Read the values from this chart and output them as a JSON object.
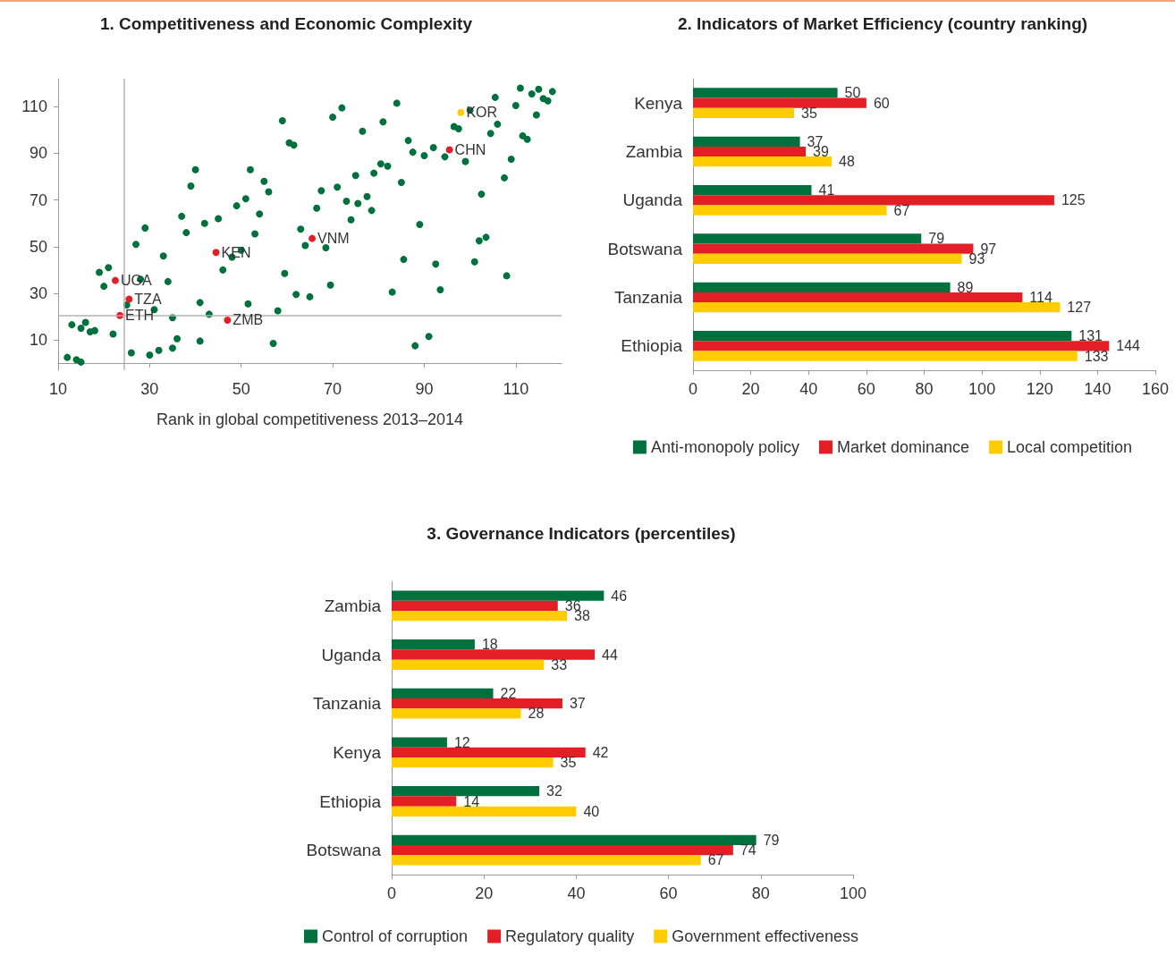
{
  "chart_data": [
    {
      "type": "scatter",
      "title": "1. Competitiveness and Economic Complexity",
      "xlabel": "Rank in global competitiveness 2013–2014",
      "xlim": [
        10,
        120
      ],
      "ylim": [
        -3,
        122
      ],
      "xticks": [
        10,
        30,
        50,
        70,
        90,
        110
      ],
      "yticks": [
        10,
        30,
        50,
        70,
        90,
        110
      ],
      "grid": false,
      "marker": "circle",
      "series": [
        {
          "color": "#00703c",
          "x": [
            40,
            39,
            37,
            45,
            42,
            38,
            29,
            27,
            33,
            46,
            21,
            19,
            20,
            28,
            34,
            25,
            31,
            41,
            43,
            35,
            13,
            15,
            16,
            17,
            18,
            22,
            36,
            41,
            26,
            30,
            32,
            35,
            12,
            14,
            15,
            59,
            60.5,
            61.5,
            52,
            55,
            56,
            51,
            49,
            54,
            53,
            48,
            50,
            59.5,
            62,
            65,
            69.5,
            58,
            51.5,
            57,
            63,
            64,
            68.5,
            67.5,
            66.5,
            71,
            75,
            73,
            75.5,
            77.5,
            78.5,
            74,
            70,
            72,
            76.5,
            79,
            84,
            81,
            86.5,
            87.5,
            90,
            92,
            94.5,
            100,
            96.5,
            97.5,
            99,
            104.5,
            106,
            105.5,
            111,
            113.5,
            115,
            118,
            116,
            117,
            110,
            114.5,
            111.5,
            112.5,
            109,
            107.5,
            102.5,
            80.5,
            82,
            85,
            89,
            102,
            103.5,
            85.5,
            92.5,
            101,
            108,
            83,
            93.5,
            88,
            91
          ],
          "values": [
            83,
            76,
            63,
            62,
            60,
            56,
            58,
            51,
            46,
            40,
            41,
            39,
            33,
            36,
            35,
            25,
            23,
            26,
            21,
            19.5,
            16.5,
            15,
            17.5,
            13.5,
            14,
            12.5,
            10.5,
            9.5,
            4.5,
            3.5,
            5.5,
            6.5,
            2.5,
            1.5,
            0.5,
            104,
            94.5,
            93.5,
            83,
            78,
            73.5,
            70.5,
            67.5,
            64,
            55.5,
            45.5,
            48.5,
            38.5,
            29.5,
            28.5,
            33.5,
            22.5,
            25.5,
            8.5,
            57.5,
            50.5,
            49.5,
            74,
            66.5,
            75.5,
            80.5,
            69.5,
            68.5,
            71.5,
            65.5,
            61.5,
            105.5,
            109.5,
            99.5,
            81.5,
            111.5,
            103.5,
            95.5,
            90.5,
            89,
            92.5,
            88.5,
            108.5,
            101.5,
            100.5,
            86.5,
            98.5,
            102.5,
            114,
            118,
            115.5,
            117.5,
            116.5,
            113.5,
            112.5,
            110.5,
            106.5,
            97.5,
            96,
            87.5,
            79.5,
            72.5,
            85.5,
            84.5,
            77.5,
            59.5,
            52.5,
            54,
            44.5,
            42.5,
            43.5,
            37.5,
            30.5,
            31.5,
            7.5,
            11.5
          ]
        },
        {
          "color": "#e31e24",
          "x": [
            22.5,
            25.5,
            23.5,
            44.5,
            47,
            65.5,
            95.5
          ],
          "values": [
            35.5,
            27.5,
            20.5,
            47.5,
            18.5,
            53.5,
            91.5
          ]
        },
        {
          "color": "#ffcc00",
          "x": [
            98
          ],
          "values": [
            107.5
          ]
        }
      ],
      "ref_lines": [
        {
          "axis": "x",
          "value": 24.5,
          "color": "#b3b3b3"
        },
        {
          "axis": "y",
          "value": 20.5,
          "color": "#b3b3b3"
        }
      ],
      "annotations": [
        {
          "text": "UGA",
          "x": 22.5,
          "y": 35.5
        },
        {
          "text": "TZA",
          "x": 25.5,
          "y": 27.5
        },
        {
          "text": "ETH",
          "x": 23.5,
          "y": 20.5
        },
        {
          "text": "KEN",
          "x": 44.5,
          "y": 47.5
        },
        {
          "text": "ZMB",
          "x": 47,
          "y": 18.5
        },
        {
          "text": "VNM",
          "x": 65.5,
          "y": 53.5
        },
        {
          "text": "CHN",
          "x": 95.5,
          "y": 91.5
        },
        {
          "text": "KOR",
          "x": 98,
          "y": 107.5
        }
      ]
    },
    {
      "type": "bar",
      "orientation": "horizontal",
      "title": "2. Indicators of Market Efficiency (country ranking)",
      "categories": [
        "Kenya",
        "Zambia",
        "Uganda",
        "Botswana",
        "Tanzania",
        "Ethiopia"
      ],
      "xlim": [
        0,
        160
      ],
      "xticks": [
        0,
        20,
        40,
        60,
        80,
        100,
        120,
        140,
        160
      ],
      "grid": false,
      "legend": "bottom",
      "data_labels": true,
      "series": [
        {
          "name": "Anti-monopoly policy",
          "color": "#00703c",
          "values": [
            50,
            37,
            41,
            79,
            89,
            131
          ]
        },
        {
          "name": "Market dominance",
          "color": "#e31e24",
          "values": [
            60,
            39,
            125,
            97,
            114,
            144
          ]
        },
        {
          "name": "Local competition",
          "color": "#ffcc00",
          "values": [
            35,
            48,
            67,
            93,
            127,
            133
          ]
        }
      ]
    },
    {
      "type": "bar",
      "orientation": "horizontal",
      "title": "3. Governance Indicators (percentiles)",
      "categories": [
        "Zambia",
        "Uganda",
        "Tanzania",
        "Kenya",
        "Ethiopia",
        "Botswana"
      ],
      "xlim": [
        0,
        100
      ],
      "xticks": [
        0,
        20,
        40,
        60,
        80,
        100
      ],
      "grid": false,
      "legend": "bottom",
      "data_labels": true,
      "series": [
        {
          "name": "Control of corruption",
          "color": "#00703c",
          "values": [
            46,
            18,
            22,
            12,
            32,
            79
          ]
        },
        {
          "name": "Regulatory quality",
          "color": "#e31e24",
          "values": [
            36,
            44,
            37,
            42,
            14,
            74
          ]
        },
        {
          "name": "Government effectiveness",
          "color": "#ffcc00",
          "values": [
            38,
            33,
            28,
            35,
            40,
            67
          ]
        }
      ]
    }
  ]
}
